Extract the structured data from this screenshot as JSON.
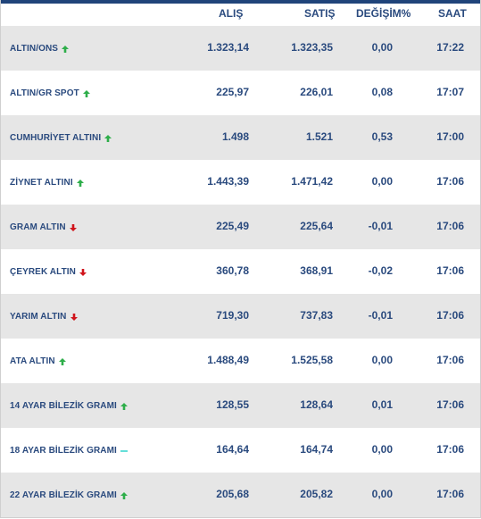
{
  "colors": {
    "accent": "#20447a",
    "text": "#2a4a7e",
    "row_shade": "#e6e6e6",
    "up": "#2eae4a",
    "down": "#d0141b",
    "flat": "#3fd7d0"
  },
  "header": {
    "alis": "ALIŞ",
    "satis": "SATIŞ",
    "degisim": "DEĞİŞİM%",
    "saat": "SAAT"
  },
  "rows": [
    {
      "name": "ALTIN/ONS",
      "trend": "up-arrow-icon",
      "alis": "1.323,14",
      "satis": "1.323,35",
      "degisim": "0,00",
      "saat": "17:22"
    },
    {
      "name": "ALTIN/GR SPOT",
      "trend": "up-arrow-icon",
      "alis": "225,97",
      "satis": "226,01",
      "degisim": "0,08",
      "saat": "17:07"
    },
    {
      "name": "CUMHURİYET ALTINI",
      "trend": "up-arrow-icon",
      "alis": "1.498",
      "satis": "1.521",
      "degisim": "0,53",
      "saat": "17:00"
    },
    {
      "name": "ZİYNET ALTINI",
      "trend": "up-arrow-icon",
      "alis": "1.443,39",
      "satis": "1.471,42",
      "degisim": "0,00",
      "saat": "17:06"
    },
    {
      "name": "GRAM ALTIN",
      "trend": "down-arrow-icon",
      "alis": "225,49",
      "satis": "225,64",
      "degisim": "-0,01",
      "saat": "17:06"
    },
    {
      "name": "ÇEYREK ALTIN",
      "trend": "down-arrow-icon",
      "alis": "360,78",
      "satis": "368,91",
      "degisim": "-0,02",
      "saat": "17:06"
    },
    {
      "name": "YARIM ALTIN",
      "trend": "down-arrow-icon",
      "alis": "719,30",
      "satis": "737,83",
      "degisim": "-0,01",
      "saat": "17:06"
    },
    {
      "name": "ATA ALTIN",
      "trend": "up-arrow-icon",
      "alis": "1.488,49",
      "satis": "1.525,58",
      "degisim": "0,00",
      "saat": "17:06"
    },
    {
      "name": "14 AYAR BİLEZİK GRAMI",
      "trend": "up-arrow-icon",
      "alis": "128,55",
      "satis": "128,64",
      "degisim": "0,01",
      "saat": "17:06"
    },
    {
      "name": "18 AYAR BİLEZİK GRAMI",
      "trend": "flat-dash-icon",
      "alis": "164,64",
      "satis": "164,74",
      "degisim": "0,00",
      "saat": "17:06"
    },
    {
      "name": "22 AYAR BİLEZİK GRAMI",
      "trend": "up-arrow-icon",
      "alis": "205,68",
      "satis": "205,82",
      "degisim": "0,00",
      "saat": "17:06"
    }
  ]
}
